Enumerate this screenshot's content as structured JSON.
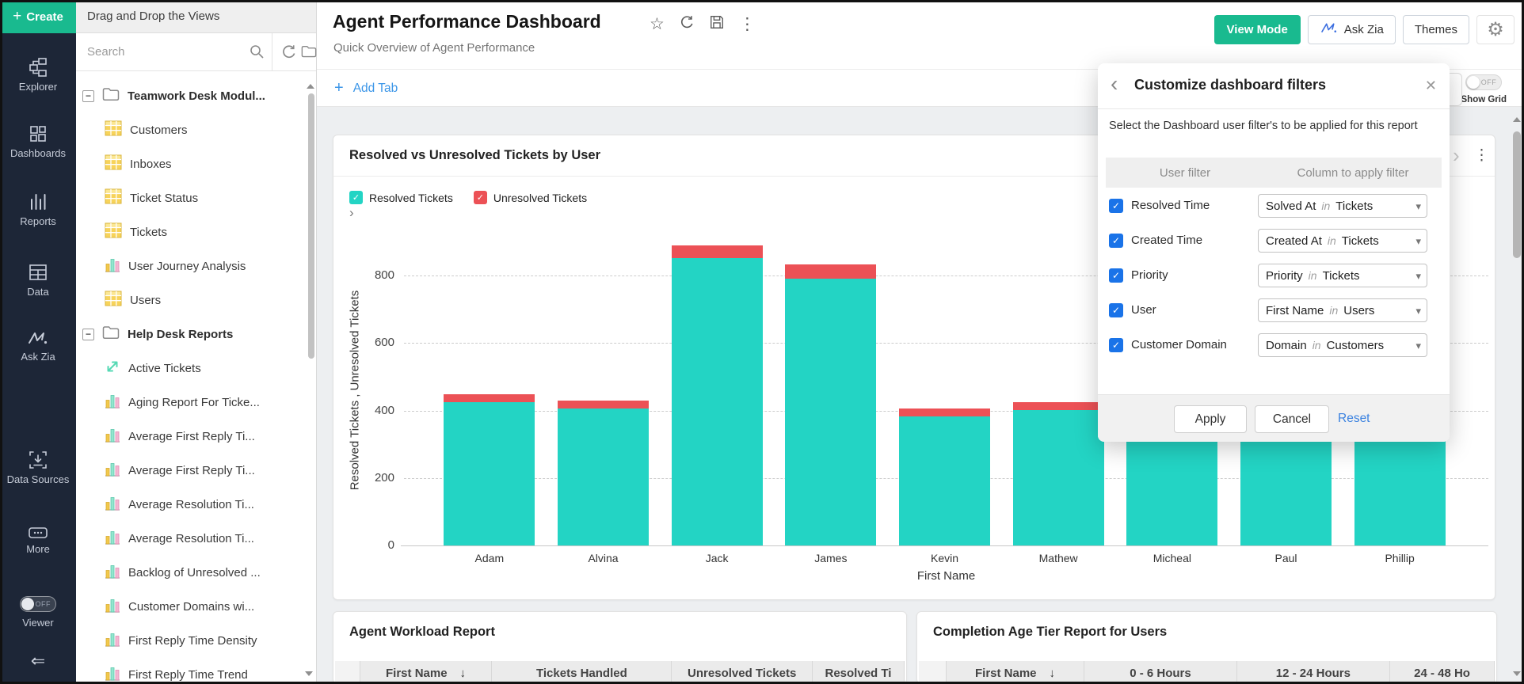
{
  "nav_rail": {
    "create_label": "Create",
    "items": [
      {
        "key": "explorer",
        "label": "Explorer"
      },
      {
        "key": "dashboards",
        "label": "Dashboards"
      },
      {
        "key": "reports",
        "label": "Reports"
      },
      {
        "key": "data",
        "label": "Data"
      },
      {
        "key": "ask-zia",
        "label": "Ask Zia"
      },
      {
        "key": "data-sources",
        "label": "Data Sources"
      },
      {
        "key": "more",
        "label": "More"
      }
    ],
    "viewer_label": "Viewer",
    "viewer_toggle_state": "OFF"
  },
  "views_panel": {
    "header": "Drag and Drop the Views",
    "search_placeholder": "Search",
    "tree": [
      {
        "type": "folder",
        "label": "Teamwork Desk Modul..."
      },
      {
        "type": "table",
        "label": "Customers"
      },
      {
        "type": "table",
        "label": "Inboxes"
      },
      {
        "type": "table",
        "label": "Ticket Status"
      },
      {
        "type": "table",
        "label": "Tickets"
      },
      {
        "type": "chart",
        "label": "User Journey Analysis"
      },
      {
        "type": "table",
        "label": "Users"
      },
      {
        "type": "folder",
        "label": "Help Desk Reports"
      },
      {
        "type": "active",
        "label": "Active Tickets"
      },
      {
        "type": "chart",
        "label": "Aging Report For Ticke..."
      },
      {
        "type": "chart",
        "label": "Average First Reply Ti..."
      },
      {
        "type": "chart",
        "label": "Average First Reply Ti..."
      },
      {
        "type": "chart",
        "label": "Average Resolution Ti..."
      },
      {
        "type": "chart",
        "label": "Average Resolution Ti..."
      },
      {
        "type": "chart",
        "label": "Backlog of Unresolved ..."
      },
      {
        "type": "chart",
        "label": "Customer Domains wi..."
      },
      {
        "type": "chart",
        "label": "First Reply Time Density"
      },
      {
        "type": "chart",
        "label": "First Reply Time Trend"
      }
    ]
  },
  "header": {
    "title": "Agent Performance Dashboard",
    "subtitle": "Quick Overview of Agent Performance",
    "view_mode_label": "View Mode",
    "ask_zia_label": "Ask Zia",
    "themes_label": "Themes"
  },
  "tab_bar": {
    "add_tab_label": "Add Tab",
    "show_grid_label": "Show Grid",
    "show_grid_state": "OFF"
  },
  "chart_card": {
    "title": "Resolved vs Unresolved Tickets by User"
  },
  "chart_data": {
    "type": "bar",
    "stacked": true,
    "title": "Resolved vs Unresolved Tickets by User",
    "categories": [
      "Adam",
      "Alvina",
      "Jack",
      "James",
      "Kevin",
      "Mathew",
      "Micheal",
      "Paul",
      "Phillip"
    ],
    "series": [
      {
        "name": "Resolved Tickets",
        "color": "#23d4c4",
        "values": [
          425,
          406,
          852,
          791,
          383,
          401,
          400,
          400,
          400
        ]
      },
      {
        "name": "Unresolved Tickets",
        "color": "#ec5156",
        "values": [
          23,
          24,
          38,
          42,
          23,
          24,
          25,
          25,
          25
        ]
      }
    ],
    "xlabel": "First Name",
    "ylabel": "Resolved Tickets , Unresolved Tickets",
    "yticks": [
      0,
      200,
      400,
      600,
      800
    ],
    "ylim": [
      0,
      880
    ],
    "grid": "horizontal-dashed",
    "legend_position": "top-left",
    "note": "Tops of Micheal, Paul and Phillip bars are hidden behind the filters dialog; those values are estimates."
  },
  "dialog": {
    "title": "Customize dashboard filters",
    "description": "Select the Dashboard user filter's to be applied for this report",
    "user_filter_header": "User filter",
    "column_header": "Column to apply filter",
    "rows": [
      {
        "checked": true,
        "label": "Resolved Time",
        "column": "Solved At",
        "keyword": "in",
        "table": "Tickets"
      },
      {
        "checked": true,
        "label": "Created Time",
        "column": "Created At",
        "keyword": "in",
        "table": "Tickets"
      },
      {
        "checked": true,
        "label": "Priority",
        "column": "Priority",
        "keyword": "in",
        "table": "Tickets"
      },
      {
        "checked": true,
        "label": "User",
        "column": "First Name",
        "keyword": "in",
        "table": "Users"
      },
      {
        "checked": true,
        "label": "Customer Domain",
        "column": "Domain",
        "keyword": "in",
        "table": "Customers"
      }
    ],
    "apply_label": "Apply",
    "cancel_label": "Cancel",
    "reset_label": "Reset"
  },
  "tables": [
    {
      "title": "Agent Workload Report",
      "columns": [
        "",
        "First Name",
        "Tickets Handled",
        "Unresolved Tickets",
        "Resolved Ti"
      ],
      "sort_column": "First Name",
      "sort_indicator": "↓"
    },
    {
      "title": "Completion Age Tier Report for Users",
      "columns": [
        "",
        "First Name",
        "0 - 6 Hours",
        "12 - 24 Hours",
        "24 - 48 Ho"
      ],
      "sort_column": "First Name",
      "sort_indicator": "↓"
    }
  ]
}
